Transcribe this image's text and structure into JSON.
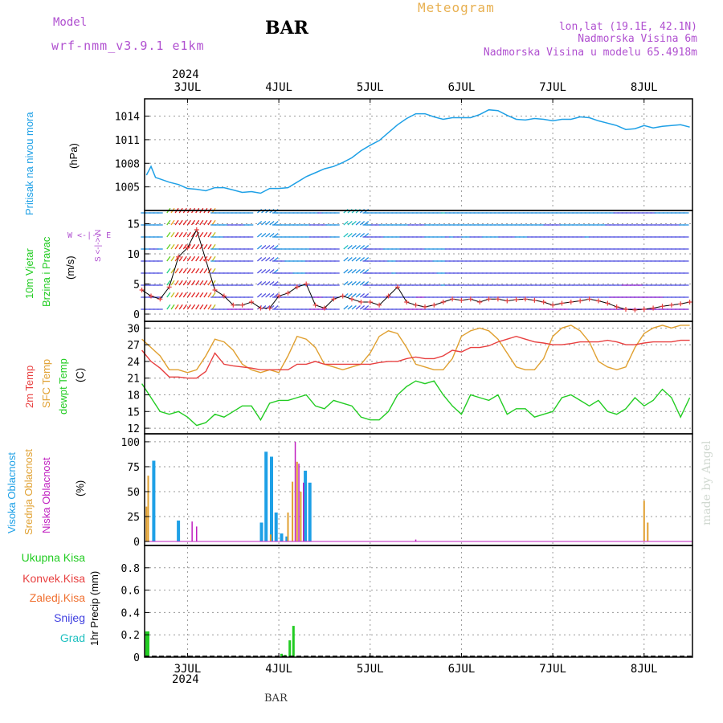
{
  "header": {
    "model_label": "Model",
    "model_name": "wrf-nmm_v3.9.1 e1km",
    "station": "BAR",
    "meteogram": "Meteogram",
    "lonlat": "lon,lat (19.1E, 42.1N)",
    "elevation": "Nadmorska Visina 6m",
    "model_elevation": "Nadmorska Visina u modelu 65.4918m",
    "year_top": "2024",
    "year_bottom": "2024",
    "footer_station": "BAR",
    "credit": "made by Angel"
  },
  "colors": {
    "pressure": "#1ea0e6",
    "temp2m": "#e84040",
    "sfc": "#e0a030",
    "dewpt": "#22cc22",
    "visoka": "#1ea0e6",
    "srednja": "#e0a030",
    "niska": "#c020c0",
    "ukupna": "#22cc22",
    "konvek": "#e84040",
    "zaledj": "#f07030",
    "snijeg": "#4040e0",
    "grad": "#20c0c0",
    "purple_text": "#b050d0"
  },
  "days": [
    "3JUL",
    "4JUL",
    "5JUL",
    "6JUL",
    "7JUL",
    "8JUL"
  ],
  "panels": {
    "pressure": {
      "label1": "Pritisak na nivou mora",
      "unit": "(hPa)",
      "ticks": [
        1005,
        1008,
        1011,
        1014
      ],
      "ylim": [
        1002,
        1016.2
      ]
    },
    "wind": {
      "label1": "10m Vjetar",
      "label2": "Brzina i Pravac",
      "unit": "(m/s)",
      "compass": "W <-|-> E",
      "compass_ns": "S <-|-> N",
      "ticks": [
        0,
        5,
        10,
        15
      ],
      "ylim": [
        -1.2,
        17.2
      ]
    },
    "temp": {
      "label1": "2m Temp",
      "label2": "SFC Temp",
      "label3": "dewpt Temp",
      "unit": "(C)",
      "ticks": [
        12,
        15,
        18,
        21,
        24,
        27,
        30
      ],
      "ylim": [
        11,
        31.2
      ]
    },
    "cloud": {
      "label1": "Visoka Oblacnost",
      "label2": "Srednja Oblacnost",
      "label3": "Niska Oblacnost",
      "unit": "(%)",
      "ticks": [
        0,
        25,
        50,
        75,
        100
      ],
      "ylim": [
        -4,
        108
      ]
    },
    "precip": {
      "legend": [
        "Ukupna Kisa",
        "Konvek.Kisa",
        "Zaledj.Kisa",
        "Snijeg",
        "Grad"
      ],
      "unit": "1hr Precip (mm)",
      "ticks": [
        "0",
        "0.2",
        "0.4",
        "0.6",
        "0.8"
      ],
      "ylim": [
        0,
        1.0
      ]
    }
  },
  "chart_data": [
    {
      "type": "line",
      "series": [
        {
          "name": "Pritisak na nivou mora",
          "x": [
            2.55,
            2.6,
            2.65,
            2.7,
            2.8,
            2.9,
            3.0,
            3.1,
            3.2,
            3.3,
            3.4,
            3.5,
            3.6,
            3.7,
            3.8,
            3.9,
            4.0,
            4.1,
            4.2,
            4.3,
            4.4,
            4.5,
            4.6,
            4.7,
            4.8,
            4.9,
            5.0,
            5.1,
            5.2,
            5.3,
            5.4,
            5.5,
            5.6,
            5.7,
            5.8,
            5.9,
            6.0,
            6.1,
            6.2,
            6.3,
            6.4,
            6.5,
            6.6,
            6.7,
            6.8,
            6.9,
            7.0,
            7.1,
            7.2,
            7.3,
            7.4,
            7.5,
            7.6,
            7.7,
            7.8,
            7.9,
            8.0,
            8.1,
            8.2,
            8.3,
            8.4,
            8.5
          ],
          "values": [
            1006.5,
            1007.6,
            1006.2,
            1006,
            1005.6,
            1005.3,
            1004.8,
            1004.7,
            1004.5,
            1004.9,
            1004.9,
            1004.6,
            1004.3,
            1004.4,
            1004.2,
            1004.8,
            1004.8,
            1004.9,
            1005.6,
            1006.3,
            1006.8,
            1007.3,
            1007.6,
            1008.1,
            1008.7,
            1009.6,
            1010.3,
            1010.9,
            1011.9,
            1012.9,
            1013.7,
            1014.3,
            1014.3,
            1013.9,
            1013.6,
            1013.8,
            1013.8,
            1013.8,
            1014.2,
            1014.8,
            1014.7,
            1014.1,
            1013.6,
            1013.5,
            1013.7,
            1013.6,
            1013.4,
            1013.6,
            1013.6,
            1013.9,
            1013.8,
            1013.4,
            1013.1,
            1012.8,
            1012.3,
            1012.4,
            1012.8,
            1012.5,
            1012.7,
            1012.8,
            1012.9,
            1012.6
          ]
        }
      ]
    },
    {
      "type": "line",
      "series": [
        {
          "name": "Brzina",
          "x": [
            2.5,
            2.6,
            2.7,
            2.8,
            2.9,
            3.0,
            3.1,
            3.2,
            3.3,
            3.4,
            3.5,
            3.6,
            3.7,
            3.8,
            3.9,
            4.0,
            4.1,
            4.2,
            4.3,
            4.4,
            4.5,
            4.6,
            4.7,
            4.8,
            4.9,
            5.0,
            5.1,
            5.2,
            5.3,
            5.4,
            5.5,
            5.6,
            5.7,
            5.8,
            5.9,
            6.0,
            6.1,
            6.2,
            6.3,
            6.4,
            6.5,
            6.6,
            6.7,
            6.8,
            6.9,
            7.0,
            7.1,
            7.2,
            7.3,
            7.4,
            7.5,
            7.6,
            7.7,
            7.8,
            7.9,
            8.0,
            8.1,
            8.2,
            8.3,
            8.4,
            8.5
          ],
          "values": [
            4,
            3,
            2.5,
            4.5,
            9.5,
            11,
            14,
            9,
            4,
            3,
            1.5,
            1.5,
            2,
            1,
            1,
            3,
            3.5,
            4.5,
            5,
            1.5,
            1,
            2.5,
            3,
            2.5,
            2,
            2,
            1.5,
            3,
            4.5,
            2,
            1.5,
            1.2,
            1.5,
            2,
            2.5,
            2.3,
            2.5,
            2,
            2.5,
            2.5,
            2.2,
            2.4,
            2.5,
            2.3,
            2,
            1.5,
            1.8,
            2,
            2.2,
            2.5,
            2.2,
            1.8,
            1.2,
            0.8,
            0.7,
            0.8,
            1,
            1.3,
            1.5,
            1.7,
            2
          ]
        }
      ]
    },
    {
      "type": "line",
      "series": [
        {
          "name": "2m Temp",
          "x": [
            2.5,
            2.6,
            2.7,
            2.8,
            2.9,
            3.0,
            3.1,
            3.2,
            3.3,
            3.4,
            3.5,
            3.6,
            3.7,
            3.8,
            3.9,
            4.0,
            4.1,
            4.2,
            4.3,
            4.4,
            4.5,
            4.6,
            4.7,
            4.8,
            4.9,
            5.0,
            5.1,
            5.2,
            5.3,
            5.4,
            5.5,
            5.6,
            5.7,
            5.8,
            5.9,
            6.0,
            6.1,
            6.2,
            6.3,
            6.4,
            6.5,
            6.6,
            6.7,
            6.8,
            6.9,
            7.0,
            7.1,
            7.2,
            7.3,
            7.4,
            7.5,
            7.6,
            7.7,
            7.8,
            7.9,
            8.0,
            8.1,
            8.2,
            8.3,
            8.4,
            8.5
          ],
          "values": [
            26,
            24,
            22.8,
            21.2,
            21.2,
            21,
            21,
            22.2,
            25.5,
            23.5,
            23.2,
            23,
            22.8,
            22.5,
            22.5,
            22.5,
            22.5,
            23.5,
            23.5,
            24,
            23.5,
            23.5,
            23.5,
            23.5,
            23.5,
            23.5,
            23.8,
            24,
            24,
            24.5,
            24.8,
            24.5,
            24.5,
            25,
            26,
            25.7,
            26.5,
            26.5,
            26.8,
            27.5,
            28,
            28.5,
            28,
            27.5,
            27.3,
            27,
            27,
            27.2,
            27.5,
            27.5,
            27.5,
            27.8,
            27.5,
            27,
            27,
            27.3,
            27.5,
            27.5,
            27.5,
            27.8,
            27.8
          ]
        },
        {
          "name": "SFC Temp",
          "x": [
            2.5,
            2.6,
            2.7,
            2.8,
            2.9,
            3.0,
            3.1,
            3.2,
            3.3,
            3.4,
            3.5,
            3.6,
            3.7,
            3.8,
            3.9,
            4.0,
            4.1,
            4.2,
            4.3,
            4.4,
            4.5,
            4.6,
            4.7,
            4.8,
            4.9,
            5.0,
            5.1,
            5.2,
            5.3,
            5.4,
            5.5,
            5.6,
            5.7,
            5.8,
            5.9,
            6.0,
            6.1,
            6.2,
            6.3,
            6.4,
            6.5,
            6.6,
            6.7,
            6.8,
            6.9,
            7.0,
            7.1,
            7.2,
            7.3,
            7.4,
            7.5,
            7.6,
            7.7,
            7.8,
            7.9,
            8.0,
            8.1,
            8.2,
            8.3,
            8.4,
            8.5
          ],
          "values": [
            28,
            26.5,
            25,
            22.5,
            22.5,
            22,
            22.5,
            25,
            28,
            27.5,
            26,
            23.5,
            22.5,
            22,
            22.5,
            22,
            25,
            28.5,
            28,
            26.5,
            23.5,
            23,
            22.5,
            23,
            23.5,
            25.5,
            28.5,
            29.5,
            29,
            26.5,
            23.5,
            23,
            22.5,
            22.5,
            24.5,
            28.5,
            29.5,
            30,
            29.5,
            28,
            25.5,
            23,
            22.5,
            22.5,
            24.5,
            28.5,
            30,
            30.5,
            29.5,
            27.5,
            24,
            23,
            22.5,
            23,
            26.5,
            29,
            30,
            30.5,
            30,
            30.5,
            30.5
          ]
        },
        {
          "name": "dewpt Temp",
          "x": [
            2.5,
            2.6,
            2.7,
            2.8,
            2.9,
            3.0,
            3.1,
            3.2,
            3.3,
            3.4,
            3.5,
            3.6,
            3.7,
            3.8,
            3.9,
            4.0,
            4.1,
            4.2,
            4.3,
            4.4,
            4.5,
            4.6,
            4.7,
            4.8,
            4.9,
            5.0,
            5.1,
            5.2,
            5.3,
            5.4,
            5.5,
            5.6,
            5.7,
            5.8,
            5.9,
            6.0,
            6.1,
            6.2,
            6.3,
            6.4,
            6.5,
            6.6,
            6.7,
            6.8,
            6.9,
            7.0,
            7.1,
            7.2,
            7.3,
            7.4,
            7.5,
            7.6,
            7.7,
            7.8,
            7.9,
            8.0,
            8.1,
            8.2,
            8.3,
            8.4,
            8.5
          ],
          "values": [
            20,
            17.5,
            15,
            14.5,
            15,
            14,
            12.5,
            13,
            14.5,
            14,
            15,
            16,
            16,
            13.5,
            16.5,
            17,
            17,
            17.5,
            18,
            16,
            15.5,
            17,
            16.5,
            16,
            14,
            13.5,
            13.5,
            15,
            18,
            19.5,
            20.5,
            20,
            20.5,
            18,
            16,
            14.5,
            18,
            17.5,
            17,
            18,
            14.5,
            15.5,
            15.5,
            14,
            14.5,
            15,
            17.5,
            18,
            17,
            16,
            17,
            15,
            14.5,
            15.5,
            17.5,
            16,
            17,
            19,
            17.5,
            14,
            17.5
          ]
        }
      ]
    },
    {
      "type": "bar",
      "series": [
        {
          "name": "Visoka Oblacnost",
          "x": [
            2.63,
            2.9,
            3.81,
            3.86,
            3.92,
            3.97,
            4.03,
            4.09,
            4.29,
            4.34
          ],
          "values": [
            81,
            21,
            19,
            90,
            85,
            29,
            8,
            5,
            71,
            59
          ]
        },
        {
          "name": "Srednja Oblacnost",
          "x": [
            2.55,
            2.57,
            3.91,
            4.1,
            4.15,
            4.2,
            4.24,
            8.0,
            8.04
          ],
          "values": [
            35,
            66,
            7,
            29,
            60,
            80,
            50,
            41,
            19
          ]
        },
        {
          "name": "Niska Oblacnost",
          "x": [
            3.05,
            3.1,
            4.18,
            4.22,
            4.27,
            5.5
          ],
          "values": [
            20,
            15,
            100,
            78,
            59,
            2
          ]
        }
      ]
    },
    {
      "type": "bar",
      "series": [
        {
          "name": "Ukupna Kisa",
          "x": [
            2.55,
            2.57,
            4.03,
            4.07,
            4.12,
            4.16,
            4.2
          ],
          "values": [
            0.23,
            0.23,
            0.03,
            0.02,
            0.15,
            0.28,
            0.0
          ]
        }
      ]
    }
  ]
}
